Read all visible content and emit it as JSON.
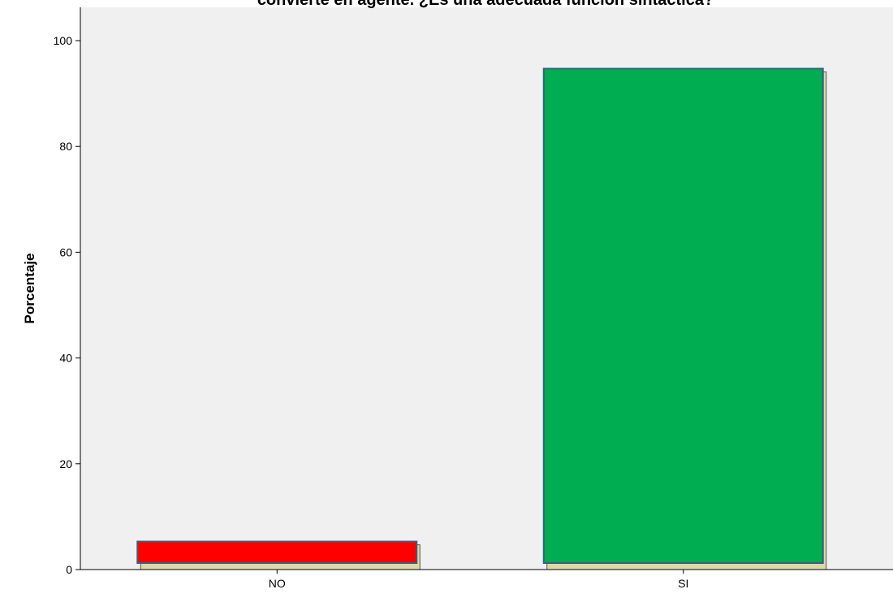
{
  "chart_data": {
    "type": "bar",
    "title": "convierte en agente. ¿Es una adecuada función sintáctica?",
    "xlabel": "",
    "ylabel": "Porcentaje",
    "categories": [
      "NO",
      "SI"
    ],
    "values": [
      5.3,
      94.7
    ],
    "ylim": [
      0,
      105
    ],
    "yticks": [
      0,
      20,
      40,
      60,
      80,
      100
    ],
    "bar_colors": [
      "#ff0000",
      "#00ad50"
    ],
    "bar_border_color": "#3a5f7f",
    "bar_shadow_color": "#ddd8a8",
    "plot_background": "#f0f0f0",
    "grid": false,
    "legend": "none"
  }
}
